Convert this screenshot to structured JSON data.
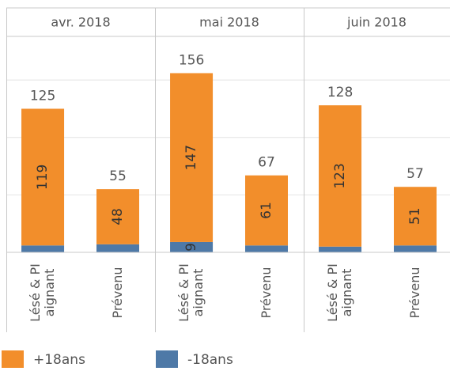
{
  "chart_data": {
    "type": "bar",
    "stacked": true,
    "facets": [
      "avr. 2018",
      "mai 2018",
      "juin 2018"
    ],
    "categories": [
      "Lésé & PI aignant",
      "Prévenu",
      "Lésé & PI aignant",
      "Prévenu",
      "Lésé & PI aignant",
      "Prévenu"
    ],
    "series": [
      {
        "name": "+18ans",
        "color": "#f28e2b",
        "values": [
          119,
          48,
          147,
          61,
          123,
          51
        ],
        "show_labels": [
          true,
          true,
          true,
          true,
          true,
          true
        ]
      },
      {
        "name": "-18ans",
        "color": "#4e79a7",
        "values": [
          6,
          7,
          9,
          6,
          5,
          6
        ],
        "show_labels": [
          false,
          false,
          true,
          false,
          false,
          false
        ]
      }
    ],
    "totals": [
      125,
      55,
      156,
      67,
      128,
      57
    ],
    "ylim": [
      0,
      188
    ],
    "gridlines": [
      50,
      100,
      150
    ]
  }
}
